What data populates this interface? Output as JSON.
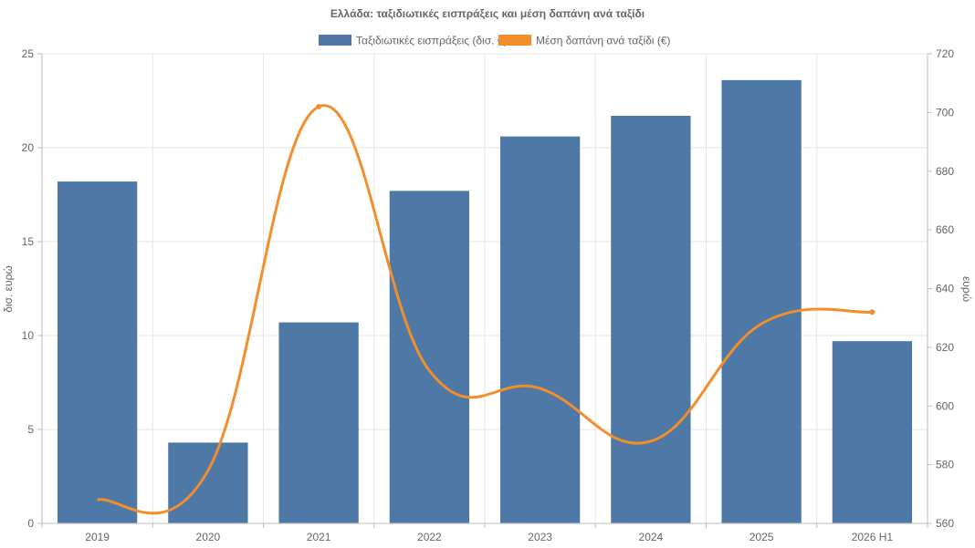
{
  "chart_data": {
    "type": "bar",
    "title": "Ελλάδα: ταξιδιωτικές εισπράξεις και μέση δαπάνη ανά ταξίδι",
    "categories": [
      "2019",
      "2020",
      "2021",
      "2022",
      "2023",
      "2024",
      "2025",
      "2026 H1"
    ],
    "series": [
      {
        "name": "Ταξιδιωτικές εισπράξεις (δισ. €)",
        "type": "bar",
        "axis": "left",
        "color": "#4e79a7",
        "values": [
          18.2,
          4.3,
          10.7,
          17.7,
          20.6,
          21.7,
          23.6,
          9.7
        ]
      },
      {
        "name": "Μέση δαπάνη ανά ταξίδι (€)",
        "type": "line",
        "axis": "right",
        "color": "#f28e2b",
        "values": [
          568,
          578,
          702,
          612,
          606,
          588,
          628,
          632
        ]
      }
    ],
    "y_left": {
      "label": "δισ. ευρώ",
      "min": 0,
      "max": 25,
      "ticks": [
        0,
        5,
        10,
        15,
        20,
        25
      ]
    },
    "y_right": {
      "label": "ευρώ",
      "min": 560,
      "max": 720,
      "ticks": [
        560,
        580,
        600,
        620,
        640,
        660,
        680,
        700,
        720
      ]
    },
    "grid": true,
    "legend_position": "top"
  }
}
